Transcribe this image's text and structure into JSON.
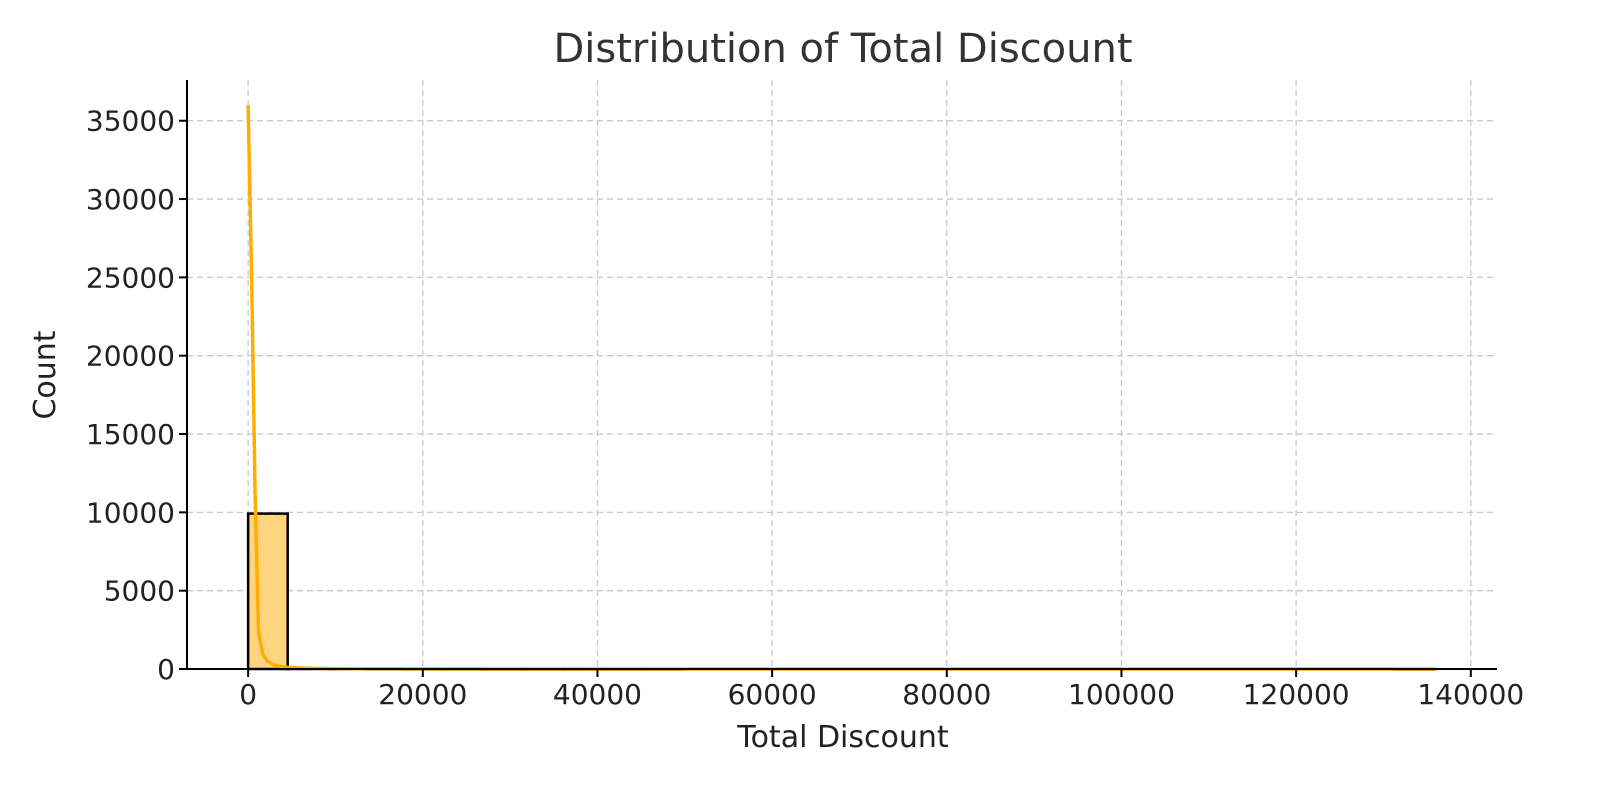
{
  "chart_data": {
    "type": "bar",
    "title": "Distribution of Total Discount",
    "xlabel": "Total Discount",
    "ylabel": "Count",
    "xlim": [
      -7000,
      143000
    ],
    "ylim": [
      0,
      37600
    ],
    "x_ticks": [
      0,
      20000,
      40000,
      60000,
      80000,
      100000,
      120000,
      140000
    ],
    "y_ticks": [
      0,
      5000,
      10000,
      15000,
      20000,
      25000,
      30000,
      35000
    ],
    "grid": true,
    "bin_edges": [
      0,
      4530,
      9060,
      13590,
      18120,
      22650,
      27180,
      31710,
      36240,
      40770,
      45300,
      49830,
      54360,
      58890,
      63420,
      67950,
      72480,
      77010,
      81540,
      86070,
      90600,
      95130,
      99660,
      104190,
      108720,
      113250,
      117780,
      122310,
      126840,
      131370,
      135900
    ],
    "bin_counts": [
      9920,
      40,
      15,
      8,
      5,
      3,
      2,
      1,
      1,
      1,
      1,
      0,
      0,
      0,
      0,
      0,
      0,
      0,
      0,
      0,
      0,
      0,
      0,
      0,
      0,
      0,
      0,
      0,
      0,
      1
    ],
    "kde": {
      "x": [
        0,
        400,
        800,
        1200,
        1700,
        2200,
        2800,
        3500,
        4500,
        6000,
        8000,
        12000,
        20000,
        40000,
        60000,
        80000,
        100000,
        120000,
        135900
      ],
      "y": [
        35900,
        25000,
        11000,
        2300,
        900,
        500,
        300,
        180,
        100,
        60,
        30,
        15,
        8,
        4,
        2,
        1,
        1,
        1,
        1
      ]
    },
    "bar_color": "#ffd480",
    "kde_color": "#ffad00"
  }
}
